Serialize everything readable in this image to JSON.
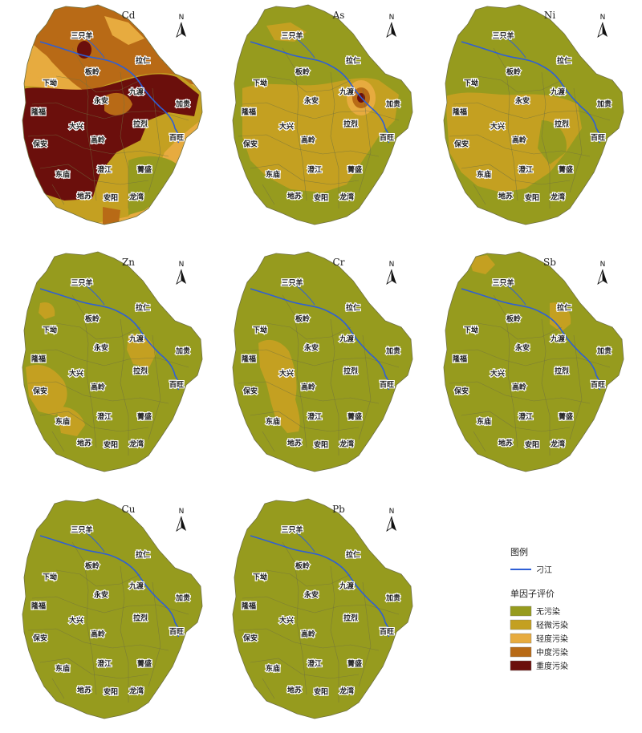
{
  "colors": {
    "none": "#969B1E",
    "slight": "#C4A021",
    "light": "#E7AB3F",
    "medium": "#B86A16",
    "heavy": "#6B0F0C",
    "river": "#2E5FD6",
    "boundary": "#6f7040"
  },
  "north_letter": "N",
  "places": [
    {
      "key": "sanzhiyang",
      "name": "三只羊"
    },
    {
      "key": "laren",
      "name": "拉仁"
    },
    {
      "key": "banling",
      "name": "板岭"
    },
    {
      "key": "xiaao",
      "name": "下坳"
    },
    {
      "key": "jiudu",
      "name": "九渡"
    },
    {
      "key": "yongan",
      "name": "永安"
    },
    {
      "key": "jiagui",
      "name": "加贵"
    },
    {
      "key": "longfu",
      "name": "隆福"
    },
    {
      "key": "lalie",
      "name": "拉烈"
    },
    {
      "key": "daxing",
      "name": "大兴"
    },
    {
      "key": "baiwang",
      "name": "百旺"
    },
    {
      "key": "baoan",
      "name": "保安"
    },
    {
      "key": "gaoling",
      "name": "高岭"
    },
    {
      "key": "chengjiang",
      "name": "澄江"
    },
    {
      "key": "jingsheng",
      "name": "菁盛"
    },
    {
      "key": "dongmiao",
      "name": "东庙"
    },
    {
      "key": "disu",
      "name": "地苏"
    },
    {
      "key": "anyang",
      "name": "安阳"
    },
    {
      "key": "longwan",
      "name": "龙湾"
    }
  ],
  "panels": [
    {
      "id": "cd",
      "title": "Cd",
      "level": "mixed"
    },
    {
      "id": "as",
      "title": "As",
      "level": "hotspot"
    },
    {
      "id": "ni",
      "title": "Ni",
      "level": "slight-wide"
    },
    {
      "id": "zn",
      "title": "Zn",
      "level": "slight-west"
    },
    {
      "id": "cr",
      "title": "Cr",
      "level": "slight-center"
    },
    {
      "id": "sb",
      "title": "Sb",
      "level": "slight-north"
    },
    {
      "id": "cu",
      "title": "Cu",
      "level": "none"
    },
    {
      "id": "pb",
      "title": "Pb",
      "level": "none"
    }
  ],
  "legend": {
    "title": "图例",
    "river_label": "刁江",
    "section_title": "单因子评价",
    "classes": [
      {
        "label": "无污染",
        "color_key": "none"
      },
      {
        "label": "轻微污染",
        "color_key": "slight"
      },
      {
        "label": "轻度污染",
        "color_key": "light"
      },
      {
        "label": "中度污染",
        "color_key": "medium"
      },
      {
        "label": "重度污染",
        "color_key": "heavy"
      }
    ]
  }
}
